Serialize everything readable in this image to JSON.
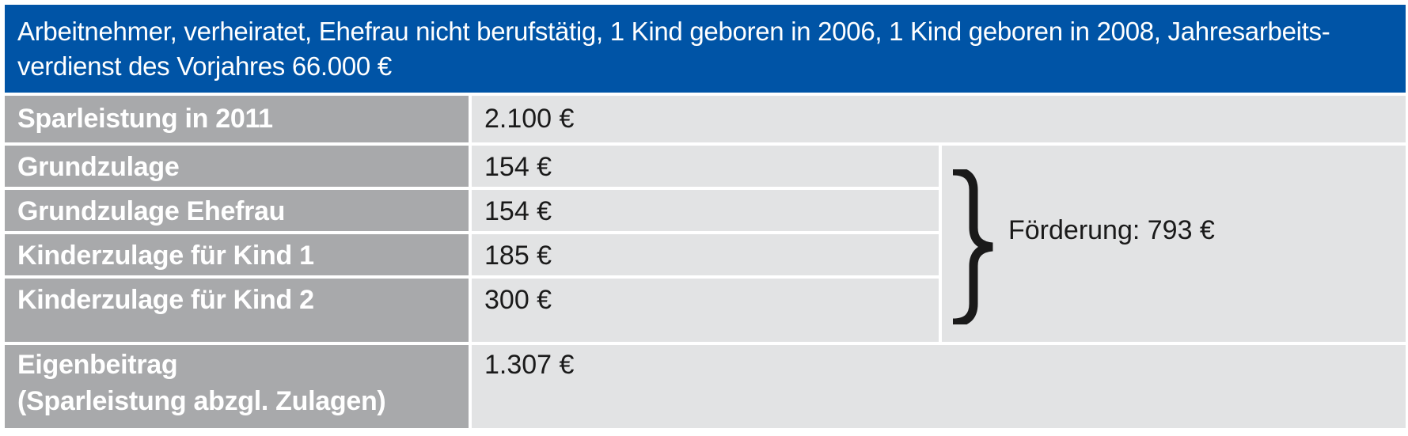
{
  "header": {
    "line1": "Arbeitnehmer, verheiratet, Ehefrau nicht berufstätig, 1 Kind geboren in 2006, 1 Kind geboren in 2008, Jahresarbeits-",
    "line2": "verdienst des Vorjahres 66.000 €"
  },
  "rows": [
    {
      "label": "Sparleistung in 2011",
      "value": "2.100 €"
    },
    {
      "label": "Grundzulage",
      "value": "154 €"
    },
    {
      "label": "Grundzulage Ehefrau",
      "value": "154 €"
    },
    {
      "label": "Kinderzulage für Kind 1",
      "value": "185 €"
    },
    {
      "label": "Kinderzulage für Kind 2",
      "value": "300 €"
    },
    {
      "label_line1": "Eigenbeitrag",
      "label_line2": "(Sparleistung abzgl. Zulagen)",
      "value": "1.307 €"
    }
  ],
  "foerderung": "Förderung: 793 €",
  "colors": {
    "header_bg": "#0054a6",
    "label_bg": "#a8a9ab",
    "value_bg": "#e2e3e4"
  }
}
